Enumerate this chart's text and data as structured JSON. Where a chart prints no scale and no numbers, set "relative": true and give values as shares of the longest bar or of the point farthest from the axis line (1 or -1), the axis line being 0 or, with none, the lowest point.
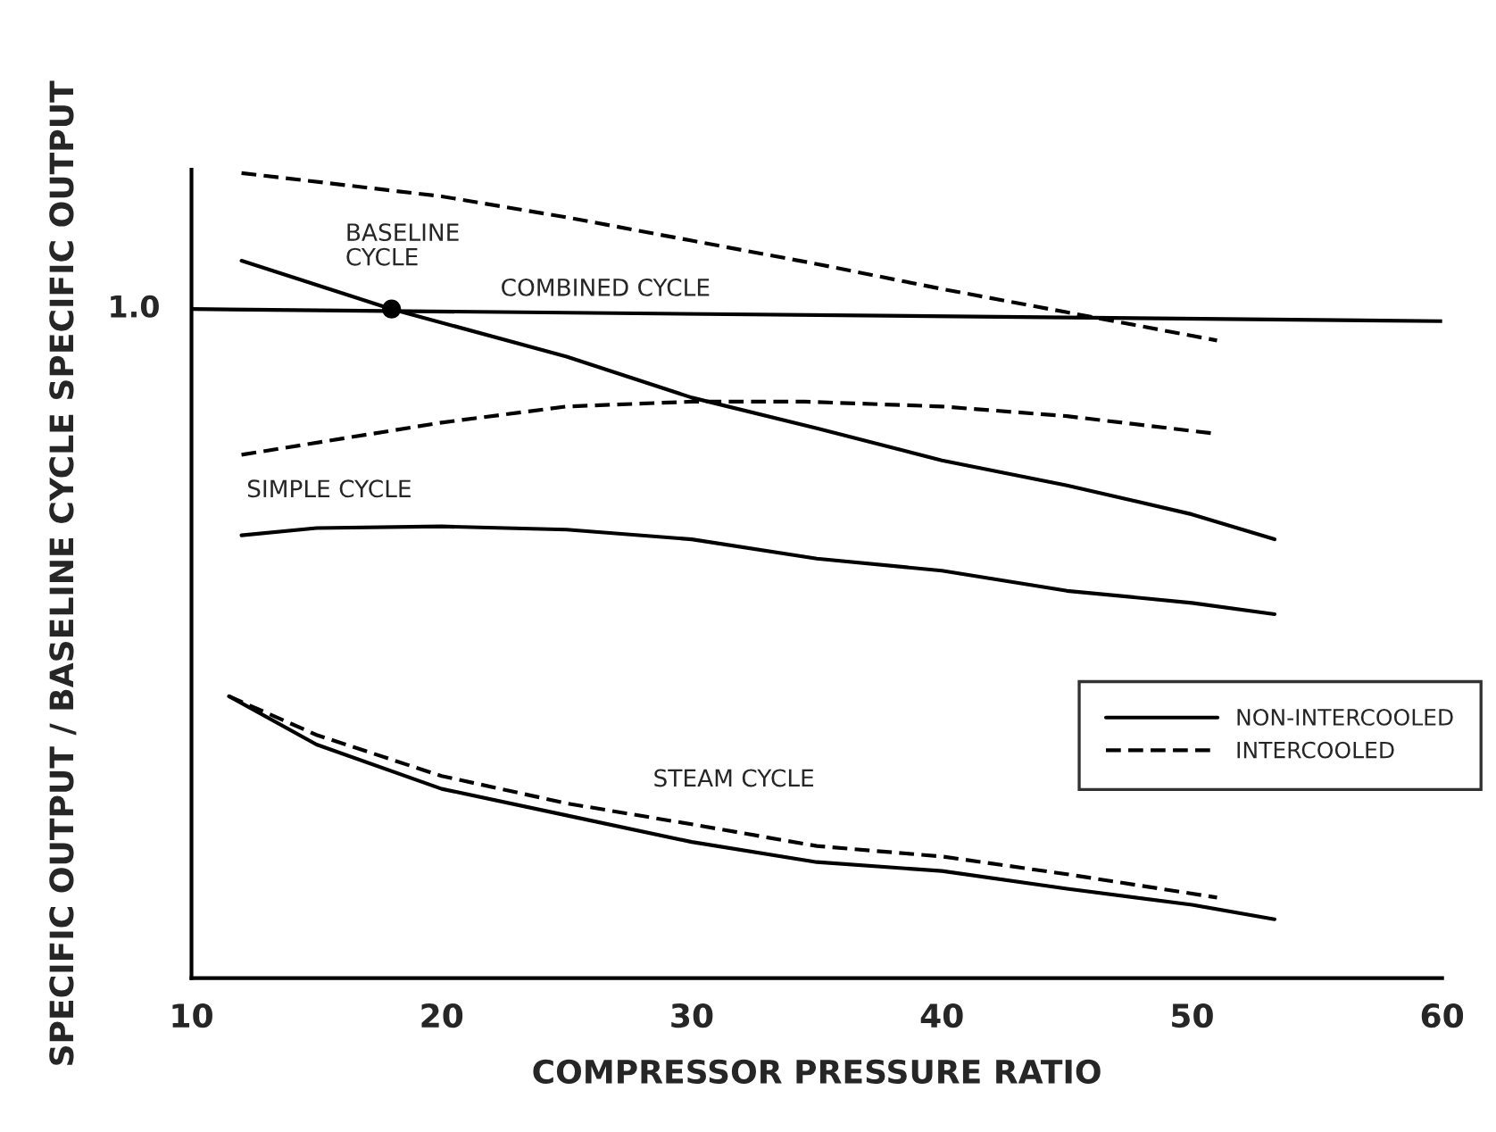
{
  "chart_data": {
    "type": "line",
    "relative": true,
    "xlabel": "COMPRESSOR PRESSURE RATIO",
    "ylabel": "SPECIFIC OUTPUT / BASELINE CYCLE SPECIFIC OUTPUT",
    "xlim": [
      10,
      60
    ],
    "xticks": [
      10,
      20,
      30,
      40,
      50,
      60
    ],
    "grid": false,
    "legend": "right",
    "marker": "none",
    "series": [
      {
        "name": "NON-INTERCOOLED",
        "color": "#000000",
        "line_style": "solid",
        "x": [
          12,
          18,
          25,
          30,
          35,
          40,
          45,
          50,
          53.3
        ],
        "values": [
          0.891,
          0.831,
          0.772,
          0.721,
          0.683,
          0.643,
          0.612,
          0.576,
          0.545
        ]
      },
      {
        "name": "INTERCOOLED",
        "color": "#000000",
        "line_style": "dashed",
        "x": [
          12,
          20,
          25,
          30,
          35,
          40,
          45,
          51
        ],
        "values": [
          1.0,
          0.971,
          0.945,
          0.916,
          0.887,
          0.856,
          0.827,
          0.792
        ]
      },
      {
        "color": "#000000",
        "line_style": "dashed",
        "x": [
          12,
          20,
          25,
          30,
          34.5,
          40,
          45,
          51
        ],
        "values": [
          0.65,
          0.69,
          0.71,
          0.716,
          0.716,
          0.71,
          0.698,
          0.676
        ]
      },
      {
        "color": "#000000",
        "line_style": "solid",
        "x": [
          12,
          15,
          20,
          25,
          30,
          35,
          40,
          45,
          50,
          53.3
        ],
        "values": [
          0.55,
          0.559,
          0.561,
          0.557,
          0.545,
          0.521,
          0.506,
          0.481,
          0.466,
          0.452
        ]
      },
      {
        "color": "#000000",
        "line_style": "solid",
        "x": [
          11.5,
          15,
          20,
          25,
          30,
          35,
          40,
          45,
          50,
          53.3
        ],
        "values": [
          0.35,
          0.29,
          0.235,
          0.202,
          0.169,
          0.144,
          0.133,
          0.111,
          0.091,
          0.073
        ]
      },
      {
        "color": "#000000",
        "line_style": "dashed",
        "x": [
          11.5,
          15,
          20,
          25,
          30,
          35,
          40,
          45,
          51
        ],
        "values": [
          0.35,
          0.302,
          0.251,
          0.217,
          0.191,
          0.164,
          0.151,
          0.129,
          0.1
        ]
      },
      {
        "color": "#000000",
        "line_style": "solid",
        "x": [
          10,
          60
        ],
        "values": [
          0.831,
          0.816
        ]
      },
      {
        "type": "scatter",
        "marker": "circle",
        "color": "#000000",
        "x": [
          18
        ],
        "values": [
          0.831
        ]
      }
    ],
    "annotations": [
      "1.0",
      "BASELINE\nCYCLE",
      "COMBINED CYCLE",
      "SIMPLE CYCLE",
      "STEAM CYCLE"
    ]
  }
}
